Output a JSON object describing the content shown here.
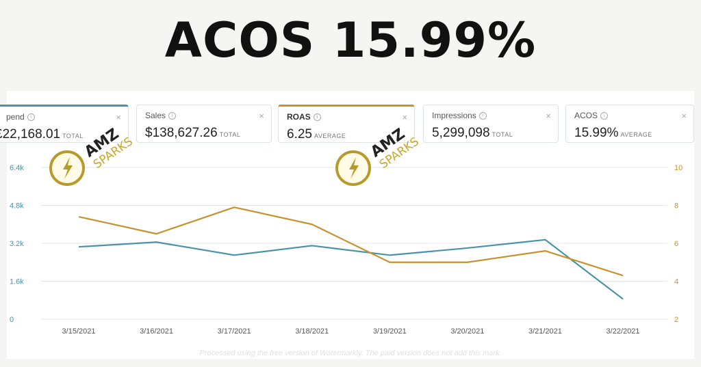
{
  "headline": "ACOS 15.99%",
  "cards": [
    {
      "label": "pend",
      "value": "£22,168.01",
      "suffix": "TOTAL"
    },
    {
      "label": "Sales",
      "value": "$138,627.26",
      "suffix": "TOTAL"
    },
    {
      "label": "ROAS",
      "value": "6.25",
      "suffix": "AVERAGE"
    },
    {
      "label": "Impressions",
      "value": "5,299,098",
      "suffix": "TOTAL"
    },
    {
      "label": "ACOS",
      "value": "15.99%",
      "suffix": "AVERAGE"
    }
  ],
  "watermark": {
    "line1": "AMZ",
    "line2": "SPARKS"
  },
  "footer_note": "Processed using the free version of Watermarkly. The paid version does not add this mark.",
  "colors": {
    "spend": "#4a93a6",
    "roas": "#c7922e"
  },
  "chart_data": {
    "type": "line",
    "categories": [
      "3/15/2021",
      "3/16/2021",
      "3/17/2021",
      "3/18/2021",
      "3/19/2021",
      "3/20/2021",
      "3/21/2021",
      "3/22/2021"
    ],
    "series": [
      {
        "axis": "left",
        "color": "#4a93a6",
        "values": [
          3050,
          3250,
          2700,
          3100,
          2700,
          3000,
          3350,
          850
        ]
      },
      {
        "axis": "right",
        "color": "#c7922e",
        "values": [
          7.4,
          6.5,
          7.9,
          7.0,
          5.0,
          5.0,
          5.6,
          4.3
        ]
      }
    ],
    "y_left": {
      "ticks": [
        "0",
        "1.6k",
        "3.2k",
        "4.8k",
        "6.4k"
      ],
      "min": 0,
      "max": 6400
    },
    "y_right": {
      "ticks": [
        "2",
        "4",
        "6",
        "8",
        "10"
      ],
      "min": 2,
      "max": 10
    },
    "grid": true
  }
}
